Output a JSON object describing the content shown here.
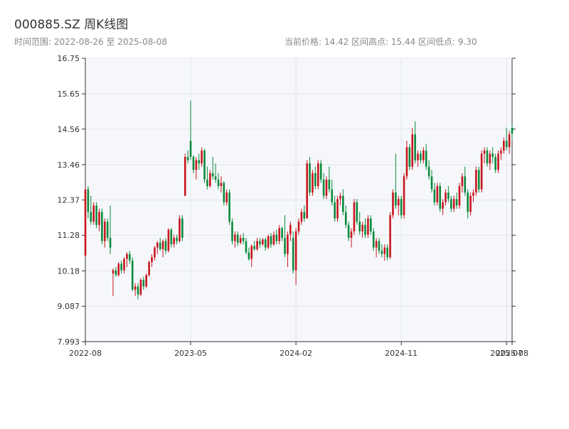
{
  "header": {
    "title": "000885.SZ 周K线图",
    "subtitle": "时间范围: 2022-08-26 至 2025-08-08",
    "info": "当前价格: 14.42   区间高点: 15.44   区间低点: 9.30"
  },
  "chart_data": {
    "type": "candlestick",
    "up_color": "#c8161d",
    "down_color": "#0b8a3c",
    "grid": true,
    "ylim": [
      7.993,
      16.75
    ],
    "yticks": [
      7.993,
      9.087,
      10.18,
      11.28,
      12.37,
      13.46,
      14.56,
      15.65,
      16.75
    ],
    "xlim": [
      "2022-08-26",
      "2025-08-08"
    ],
    "xticks": [
      {
        "value": "2022-08-26",
        "label": "2022-08"
      },
      {
        "value": "2023-05-19",
        "label": "2023-05"
      },
      {
        "value": "2024-02-09",
        "label": "2024-02"
      },
      {
        "value": "2024-11-01",
        "label": "2024-11"
      },
      {
        "value": "2025-07-25",
        "label": "2025-07"
      },
      {
        "value": "2025-08-08",
        "label": "2025-08"
      }
    ],
    "x": [
      "2022-08-26",
      "2022-09-02",
      "2022-09-09",
      "2022-09-16",
      "2022-09-23",
      "2022-09-30",
      "2022-10-07",
      "2022-10-14",
      "2022-10-21",
      "2022-10-28",
      "2022-11-04",
      "2022-11-11",
      "2022-11-18",
      "2022-11-25",
      "2022-12-02",
      "2022-12-09",
      "2022-12-16",
      "2022-12-23",
      "2022-12-30",
      "2023-01-06",
      "2023-01-13",
      "2023-01-20",
      "2023-01-27",
      "2023-02-03",
      "2023-02-10",
      "2023-02-17",
      "2023-02-24",
      "2023-03-03",
      "2023-03-10",
      "2023-03-17",
      "2023-03-24",
      "2023-03-31",
      "2023-04-07",
      "2023-04-14",
      "2023-04-21",
      "2023-04-28",
      "2023-05-05",
      "2023-05-12",
      "2023-05-19",
      "2023-05-26",
      "2023-06-02",
      "2023-06-09",
      "2023-06-16",
      "2023-06-23",
      "2023-06-30",
      "2023-07-07",
      "2023-07-14",
      "2023-07-21",
      "2023-07-28",
      "2023-08-04",
      "2023-08-11",
      "2023-08-18",
      "2023-08-25",
      "2023-09-01",
      "2023-09-08",
      "2023-09-15",
      "2023-09-22",
      "2023-09-29",
      "2023-10-06",
      "2023-10-13",
      "2023-10-20",
      "2023-10-27",
      "2023-11-03",
      "2023-11-10",
      "2023-11-17",
      "2023-11-24",
      "2023-12-01",
      "2023-12-08",
      "2023-12-15",
      "2023-12-22",
      "2023-12-29",
      "2024-01-05",
      "2024-01-12",
      "2024-01-19",
      "2024-01-26",
      "2024-02-02",
      "2024-02-09",
      "2024-02-16",
      "2024-02-23",
      "2024-03-01",
      "2024-03-08",
      "2024-03-15",
      "2024-03-22",
      "2024-03-29",
      "2024-04-05",
      "2024-04-12",
      "2024-04-19",
      "2024-04-26",
      "2024-05-03",
      "2024-05-10",
      "2024-05-17",
      "2024-05-24",
      "2024-05-31",
      "2024-06-07",
      "2024-06-14",
      "2024-06-21",
      "2024-06-28",
      "2024-07-05",
      "2024-07-12",
      "2024-07-19",
      "2024-07-26",
      "2024-08-02",
      "2024-08-09",
      "2024-08-16",
      "2024-08-23",
      "2024-08-30",
      "2024-09-06",
      "2024-09-13",
      "2024-09-20",
      "2024-09-27",
      "2024-10-04",
      "2024-10-11",
      "2024-10-18",
      "2024-10-25",
      "2024-11-01",
      "2024-11-08",
      "2024-11-15",
      "2024-11-22",
      "2024-11-29",
      "2024-12-06",
      "2024-12-13",
      "2024-12-20",
      "2024-12-27",
      "2025-01-03",
      "2025-01-10",
      "2025-01-17",
      "2025-01-24",
      "2025-01-31",
      "2025-02-07",
      "2025-02-14",
      "2025-02-21",
      "2025-02-28",
      "2025-03-07",
      "2025-03-14",
      "2025-03-21",
      "2025-03-28",
      "2025-04-04",
      "2025-04-11",
      "2025-04-18",
      "2025-04-25",
      "2025-05-02",
      "2025-05-09",
      "2025-05-16",
      "2025-05-23",
      "2025-05-30",
      "2025-06-06",
      "2025-06-13",
      "2025-06-20",
      "2025-06-27",
      "2025-07-04",
      "2025-07-11",
      "2025-07-18",
      "2025-07-25",
      "2025-08-01",
      "2025-08-08"
    ],
    "ohlc": [
      [
        10.65,
        12.75,
        10.6,
        12.7
      ],
      [
        12.7,
        12.8,
        11.8,
        12.0
      ],
      [
        12.0,
        12.5,
        11.6,
        11.7
      ],
      [
        11.7,
        12.3,
        11.6,
        12.2
      ],
      [
        12.2,
        12.3,
        11.5,
        11.6
      ],
      [
        11.6,
        12.1,
        11.4,
        12.0
      ],
      [
        12.0,
        12.1,
        11.0,
        11.1
      ],
      [
        11.1,
        11.8,
        10.9,
        11.7
      ],
      [
        11.7,
        11.8,
        11.1,
        11.2
      ],
      [
        11.2,
        12.2,
        10.7,
        10.9
      ],
      [
        10.1,
        10.25,
        9.4,
        10.2
      ],
      [
        10.2,
        10.3,
        10.0,
        10.05
      ],
      [
        10.05,
        10.45,
        10.0,
        10.4
      ],
      [
        10.4,
        10.5,
        10.1,
        10.2
      ],
      [
        10.2,
        10.6,
        10.1,
        10.55
      ],
      [
        10.55,
        10.75,
        10.3,
        10.7
      ],
      [
        10.7,
        10.8,
        10.4,
        10.5
      ],
      [
        10.5,
        10.6,
        9.55,
        9.6
      ],
      [
        9.6,
        9.8,
        9.4,
        9.7
      ],
      [
        9.7,
        9.8,
        9.3,
        9.45
      ],
      [
        9.45,
        9.95,
        9.4,
        9.9
      ],
      [
        9.9,
        10.0,
        9.6,
        9.7
      ],
      [
        9.7,
        10.1,
        9.65,
        10.05
      ],
      [
        10.05,
        10.5,
        10.0,
        10.45
      ],
      [
        10.45,
        10.7,
        10.3,
        10.6
      ],
      [
        10.6,
        10.95,
        10.5,
        10.9
      ],
      [
        10.9,
        11.1,
        10.7,
        11.05
      ],
      [
        11.05,
        11.2,
        10.8,
        10.85
      ],
      [
        10.85,
        11.15,
        10.6,
        11.1
      ],
      [
        11.1,
        11.2,
        10.7,
        10.8
      ],
      [
        10.8,
        11.5,
        10.75,
        11.45
      ],
      [
        11.45,
        11.5,
        10.9,
        11.0
      ],
      [
        11.0,
        11.3,
        10.9,
        11.2
      ],
      [
        11.2,
        11.3,
        11.0,
        11.1
      ],
      [
        11.1,
        11.9,
        11.05,
        11.8
      ],
      [
        11.8,
        11.9,
        11.1,
        11.2
      ],
      [
        12.5,
        13.8,
        12.5,
        13.7
      ],
      [
        13.7,
        13.9,
        13.5,
        13.6
      ],
      [
        14.2,
        15.44,
        13.6,
        13.7
      ],
      [
        13.7,
        13.75,
        13.2,
        13.3
      ],
      [
        13.3,
        13.7,
        13.0,
        13.6
      ],
      [
        13.6,
        13.8,
        13.3,
        13.5
      ],
      [
        13.5,
        14.0,
        13.4,
        13.9
      ],
      [
        13.9,
        13.95,
        12.9,
        13.0
      ],
      [
        13.0,
        13.4,
        12.7,
        12.8
      ],
      [
        12.8,
        13.3,
        12.75,
        13.2
      ],
      [
        13.2,
        13.7,
        13.0,
        13.1
      ],
      [
        13.1,
        13.5,
        12.9,
        13.0
      ],
      [
        13.0,
        13.2,
        12.7,
        12.8
      ],
      [
        12.8,
        13.1,
        12.6,
        12.9
      ],
      [
        12.9,
        12.95,
        12.2,
        12.3
      ],
      [
        12.3,
        12.7,
        12.2,
        12.6
      ],
      [
        12.6,
        12.7,
        11.6,
        11.7
      ],
      [
        11.7,
        11.8,
        11.0,
        11.1
      ],
      [
        11.1,
        11.4,
        10.9,
        11.3
      ],
      [
        11.3,
        11.4,
        10.95,
        11.05
      ],
      [
        11.05,
        11.3,
        11.0,
        11.2
      ],
      [
        11.2,
        11.35,
        11.0,
        11.1
      ],
      [
        11.1,
        11.2,
        10.7,
        10.75
      ],
      [
        10.75,
        10.9,
        10.5,
        10.55
      ],
      [
        10.55,
        11.0,
        10.3,
        10.95
      ],
      [
        10.95,
        11.1,
        10.8,
        10.85
      ],
      [
        10.85,
        11.2,
        10.8,
        11.1
      ],
      [
        11.1,
        11.2,
        10.9,
        11.0
      ],
      [
        11.0,
        11.2,
        10.95,
        11.15
      ],
      [
        11.15,
        11.2,
        10.8,
        10.9
      ],
      [
        10.9,
        11.3,
        10.85,
        11.25
      ],
      [
        11.25,
        11.35,
        10.9,
        11.0
      ],
      [
        11.0,
        11.4,
        10.95,
        11.3
      ],
      [
        11.3,
        11.45,
        11.0,
        11.1
      ],
      [
        11.1,
        11.6,
        11.0,
        11.5
      ],
      [
        11.5,
        11.55,
        11.1,
        11.2
      ],
      [
        11.2,
        11.9,
        10.6,
        10.7
      ],
      [
        10.7,
        11.4,
        10.3,
        11.3
      ],
      [
        11.3,
        11.7,
        11.1,
        11.6
      ],
      [
        11.2,
        11.4,
        10.1,
        10.2
      ],
      [
        10.2,
        11.5,
        9.75,
        11.4
      ],
      [
        11.4,
        11.8,
        11.3,
        11.7
      ],
      [
        11.7,
        12.1,
        11.6,
        12.0
      ],
      [
        12.0,
        12.2,
        11.7,
        11.8
      ],
      [
        11.8,
        13.6,
        11.8,
        13.5
      ],
      [
        13.5,
        13.7,
        12.5,
        12.6
      ],
      [
        12.6,
        13.3,
        12.5,
        13.2
      ],
      [
        13.2,
        13.4,
        12.7,
        12.8
      ],
      [
        12.8,
        13.6,
        12.7,
        13.5
      ],
      [
        13.5,
        13.6,
        12.9,
        13.0
      ],
      [
        13.0,
        13.2,
        12.4,
        12.5
      ],
      [
        12.5,
        13.1,
        12.4,
        13.0
      ],
      [
        13.0,
        13.4,
        12.6,
        12.7
      ],
      [
        12.7,
        13.0,
        12.2,
        12.3
      ],
      [
        12.3,
        12.5,
        11.7,
        11.8
      ],
      [
        11.8,
        12.5,
        11.7,
        12.4
      ],
      [
        12.4,
        12.6,
        12.2,
        12.5
      ],
      [
        12.5,
        12.7,
        11.9,
        12.0
      ],
      [
        12.0,
        12.2,
        11.5,
        11.6
      ],
      [
        11.6,
        11.7,
        11.1,
        11.2
      ],
      [
        11.2,
        11.5,
        10.9,
        11.4
      ],
      [
        11.4,
        12.4,
        11.3,
        12.3
      ],
      [
        12.3,
        12.4,
        11.6,
        11.7
      ],
      [
        11.7,
        12.0,
        11.3,
        11.4
      ],
      [
        11.4,
        11.7,
        11.2,
        11.6
      ],
      [
        11.6,
        11.8,
        11.2,
        11.3
      ],
      [
        11.3,
        11.9,
        11.2,
        11.8
      ],
      [
        11.8,
        11.9,
        11.3,
        11.4
      ],
      [
        11.4,
        11.5,
        10.8,
        10.9
      ],
      [
        10.9,
        11.2,
        10.6,
        11.1
      ],
      [
        11.1,
        11.2,
        10.7,
        10.8
      ],
      [
        10.8,
        11.0,
        10.6,
        10.7
      ],
      [
        10.7,
        11.0,
        10.5,
        10.9
      ],
      [
        10.9,
        11.0,
        10.5,
        10.6
      ],
      [
        10.6,
        12.0,
        10.55,
        11.9
      ],
      [
        11.9,
        12.7,
        11.8,
        12.6
      ],
      [
        12.6,
        13.8,
        12.1,
        12.2
      ],
      [
        12.2,
        12.5,
        11.9,
        12.4
      ],
      [
        12.4,
        12.5,
        11.8,
        11.9
      ],
      [
        11.9,
        13.2,
        11.8,
        13.1
      ],
      [
        13.1,
        14.2,
        13.0,
        14.0
      ],
      [
        14.0,
        14.1,
        13.3,
        13.4
      ],
      [
        13.4,
        14.6,
        13.3,
        14.4
      ],
      [
        14.4,
        14.8,
        13.5,
        13.6
      ],
      [
        13.6,
        13.9,
        13.4,
        13.8
      ],
      [
        13.8,
        13.9,
        13.5,
        13.6
      ],
      [
        13.6,
        14.0,
        13.5,
        13.9
      ],
      [
        13.9,
        14.1,
        13.3,
        13.4
      ],
      [
        13.4,
        13.6,
        13.0,
        13.1
      ],
      [
        13.1,
        13.3,
        12.6,
        12.7
      ],
      [
        12.7,
        12.9,
        12.2,
        12.3
      ],
      [
        12.3,
        12.9,
        12.2,
        12.8
      ],
      [
        12.8,
        12.9,
        12.0,
        12.1
      ],
      [
        12.1,
        12.4,
        11.9,
        12.3
      ],
      [
        12.3,
        12.7,
        12.2,
        12.6
      ],
      [
        12.6,
        12.8,
        12.3,
        12.4
      ],
      [
        12.4,
        12.5,
        12.0,
        12.1
      ],
      [
        12.1,
        12.5,
        12.0,
        12.4
      ],
      [
        12.4,
        12.6,
        12.1,
        12.2
      ],
      [
        12.2,
        12.9,
        12.1,
        12.8
      ],
      [
        12.8,
        13.2,
        12.6,
        13.1
      ],
      [
        13.1,
        13.4,
        12.5,
        12.6
      ],
      [
        12.6,
        12.7,
        11.8,
        12.0
      ],
      [
        12.0,
        12.6,
        11.9,
        12.5
      ],
      [
        12.5,
        12.7,
        12.3,
        12.6
      ],
      [
        12.6,
        13.4,
        12.5,
        13.3
      ],
      [
        13.3,
        13.4,
        12.6,
        12.7
      ],
      [
        12.7,
        13.9,
        12.6,
        13.8
      ],
      [
        13.8,
        14.0,
        13.5,
        13.9
      ],
      [
        13.9,
        14.0,
        13.4,
        13.5
      ],
      [
        13.5,
        13.9,
        13.3,
        13.8
      ],
      [
        13.8,
        14.0,
        13.5,
        13.7
      ],
      [
        13.7,
        13.8,
        13.2,
        13.3
      ],
      [
        13.3,
        13.9,
        13.2,
        13.8
      ],
      [
        13.8,
        14.0,
        13.6,
        13.9
      ],
      [
        13.9,
        14.3,
        13.8,
        14.2
      ],
      [
        14.2,
        14.6,
        13.9,
        14.0
      ],
      [
        14.0,
        14.5,
        13.8,
        14.4
      ],
      [
        14.6,
        14.7,
        14.2,
        14.42
      ]
    ]
  }
}
